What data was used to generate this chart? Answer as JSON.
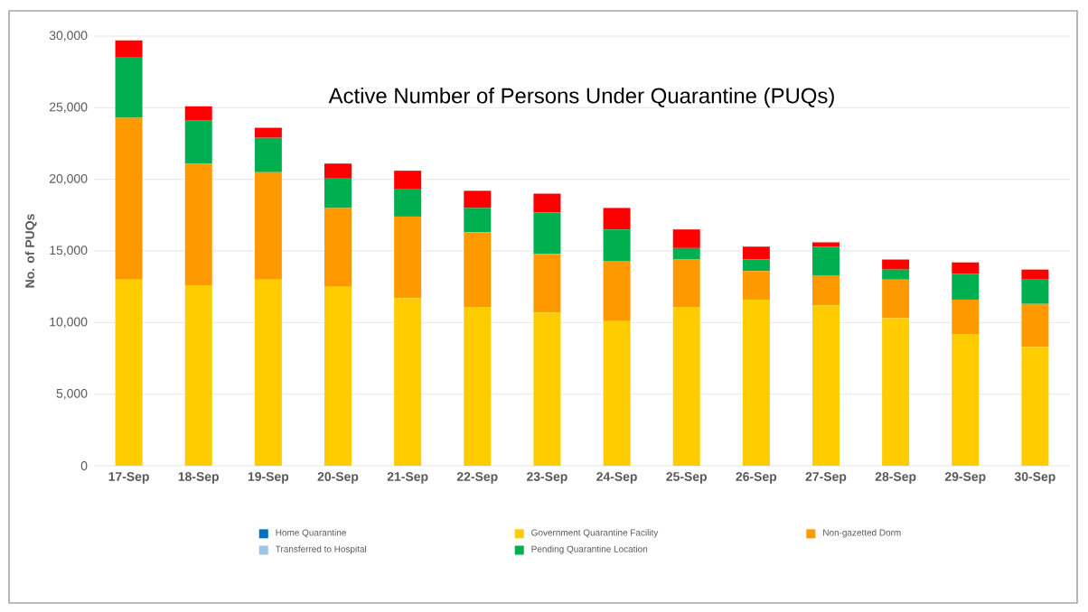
{
  "chart_data": {
    "type": "bar",
    "stacked": true,
    "title": "Active Number of Persons Under Quarantine (PUQs)",
    "ylabel": "No. of PUQs",
    "categories": [
      "17-Sep",
      "18-Sep",
      "19-Sep",
      "20-Sep",
      "21-Sep",
      "22-Sep",
      "23-Sep",
      "24-Sep",
      "25-Sep",
      "26-Sep",
      "27-Sep",
      "28-Sep",
      "29-Sep",
      "30-Sep"
    ],
    "series": [
      {
        "name": "Home  Quarantine",
        "color": "#0070c0",
        "values": [
          0,
          0,
          0,
          0,
          0,
          0,
          0,
          0,
          0,
          0,
          0,
          0,
          0,
          0
        ]
      },
      {
        "name": "Government Quarantine Facility",
        "color": "#ffcc00",
        "values": [
          13000,
          12600,
          13000,
          12500,
          11700,
          11100,
          10700,
          10100,
          11100,
          11600,
          11200,
          10300,
          9200,
          8300
        ]
      },
      {
        "name": "Non-gazetted Dorm",
        "color": "#ff9900",
        "values": [
          11300,
          8500,
          7500,
          5500,
          5700,
          5200,
          4100,
          4200,
          3300,
          2000,
          2100,
          2700,
          2400,
          3000
        ]
      },
      {
        "name": "Transferred to Hospital",
        "color": "#9dc3e6",
        "values": [
          0,
          0,
          0,
          0,
          0,
          0,
          0,
          0,
          0,
          0,
          0,
          0,
          0,
          0
        ]
      },
      {
        "name": "Pending Quarantine Location",
        "color": "#00b050",
        "values": [
          4200,
          3000,
          2400,
          2100,
          1900,
          1700,
          2900,
          2200,
          800,
          800,
          2000,
          700,
          1800,
          1700
        ]
      },
      {
        "color": "#ff0000",
        "values": [
          1200,
          1000,
          700,
          1000,
          1300,
          1200,
          1300,
          1500,
          1300,
          900,
          300,
          700,
          800,
          700
        ]
      }
    ],
    "ylim": [
      0,
      30000
    ],
    "yticks": [
      0,
      {
        "value": 5000,
        "label": "5,000"
      },
      {
        "value": 10000,
        "label": "10,000"
      },
      {
        "value": 15000,
        "label": "15,000"
      },
      {
        "value": 20000,
        "label": "20,000"
      },
      {
        "value": 25000,
        "label": "25,000"
      },
      {
        "value": 30000,
        "label": "30,000"
      }
    ],
    "grid": "y",
    "legend": "bottom"
  }
}
